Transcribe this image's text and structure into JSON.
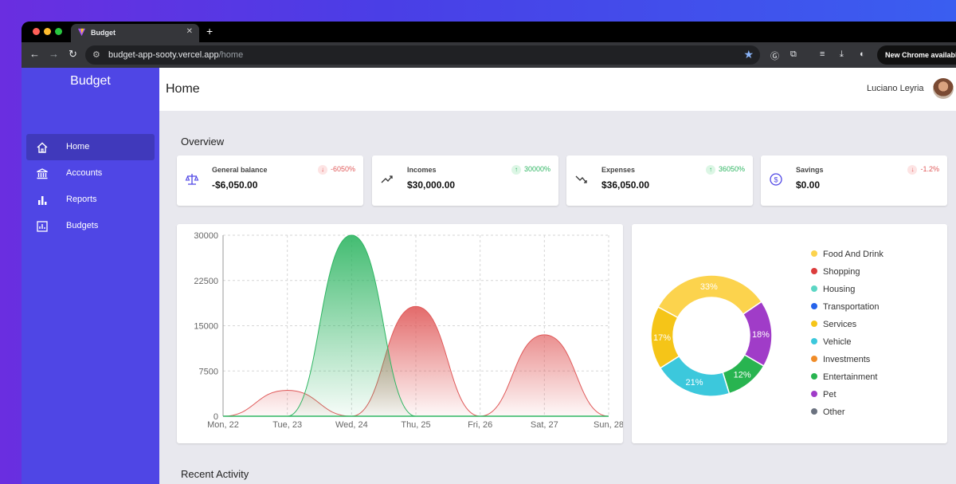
{
  "browser": {
    "tab_title": "Budget",
    "new_tab": "+",
    "url_host": "budget-app-sooty.vercel.app",
    "url_path": "/home",
    "update_label": "New Chrome available"
  },
  "sidebar": {
    "brand": "Budget",
    "items": [
      {
        "label": "Home",
        "icon": "home-icon",
        "active": true
      },
      {
        "label": "Accounts",
        "icon": "bank-icon",
        "active": false
      },
      {
        "label": "Reports",
        "icon": "bar-chart-icon",
        "active": false
      },
      {
        "label": "Budgets",
        "icon": "budget-chart-icon",
        "active": false
      }
    ]
  },
  "header": {
    "title": "Home",
    "user_name": "Luciano Leyria"
  },
  "overview": {
    "title": "Overview",
    "cards": [
      {
        "label": "General balance",
        "value": "-$6,050.00",
        "change": "-6050%",
        "direction": "down",
        "icon": "scale-icon"
      },
      {
        "label": "Incomes",
        "value": "$30,000.00",
        "change": "30000%",
        "direction": "up",
        "icon": "trending-up-icon"
      },
      {
        "label": "Expenses",
        "value": "$36,050.00",
        "change": "36050%",
        "direction": "up",
        "icon": "trending-down-icon"
      },
      {
        "label": "Savings",
        "value": "$0.00",
        "change": "-1.2%",
        "direction": "down",
        "icon": "dollar-circle-icon"
      }
    ]
  },
  "recent_activity": {
    "title": "Recent Activity"
  },
  "colors": {
    "sidebar": "#4f46e5",
    "income": "#2eb562",
    "expense": "#e05a5a"
  },
  "chart_data": [
    {
      "type": "area",
      "categories": [
        "Mon, 22",
        "Tue, 23",
        "Wed, 24",
        "Thu, 25",
        "Fri, 26",
        "Sat, 27",
        "Sun, 28"
      ],
      "ylim": [
        0,
        30000
      ],
      "yticks": [
        "0",
        "7500",
        "15000",
        "22500",
        "30000"
      ],
      "grid": true,
      "series": [
        {
          "values": [
            0,
            0,
            30000,
            0,
            0,
            0,
            0
          ],
          "color": "#2eb562"
        },
        {
          "values": [
            0,
            4300,
            0,
            18200,
            0,
            13500,
            0
          ],
          "color": "#e05a5a"
        }
      ]
    },
    {
      "type": "pie",
      "donut": true,
      "legend_position": "right",
      "labels": [
        "Food And Drink",
        "Shopping",
        "Housing",
        "Transportation",
        "Services",
        "Vehicle",
        "Investments",
        "Entertainment",
        "Pet",
        "Other"
      ],
      "legend_colors": [
        "#fcd34d",
        "#dc3c3c",
        "#5cd6c4",
        "#2563eb",
        "#f5c518",
        "#3cc8dc",
        "#f08c28",
        "#28b450",
        "#a03cc8",
        "#6b7280"
      ],
      "slices": [
        {
          "label": "Food And Drink",
          "value": 33,
          "text": "33%",
          "color": "#fcd34d"
        },
        {
          "label": "Pet",
          "value": 18,
          "text": "18%",
          "color": "#a03cc8"
        },
        {
          "label": "Entertainment",
          "value": 12,
          "text": "12%",
          "color": "#28b450"
        },
        {
          "label": "Vehicle",
          "value": 21,
          "text": "21%",
          "color": "#3cc8dc"
        },
        {
          "label": "Services",
          "value": 17,
          "text": "17%",
          "color": "#f5c518"
        }
      ]
    }
  ]
}
